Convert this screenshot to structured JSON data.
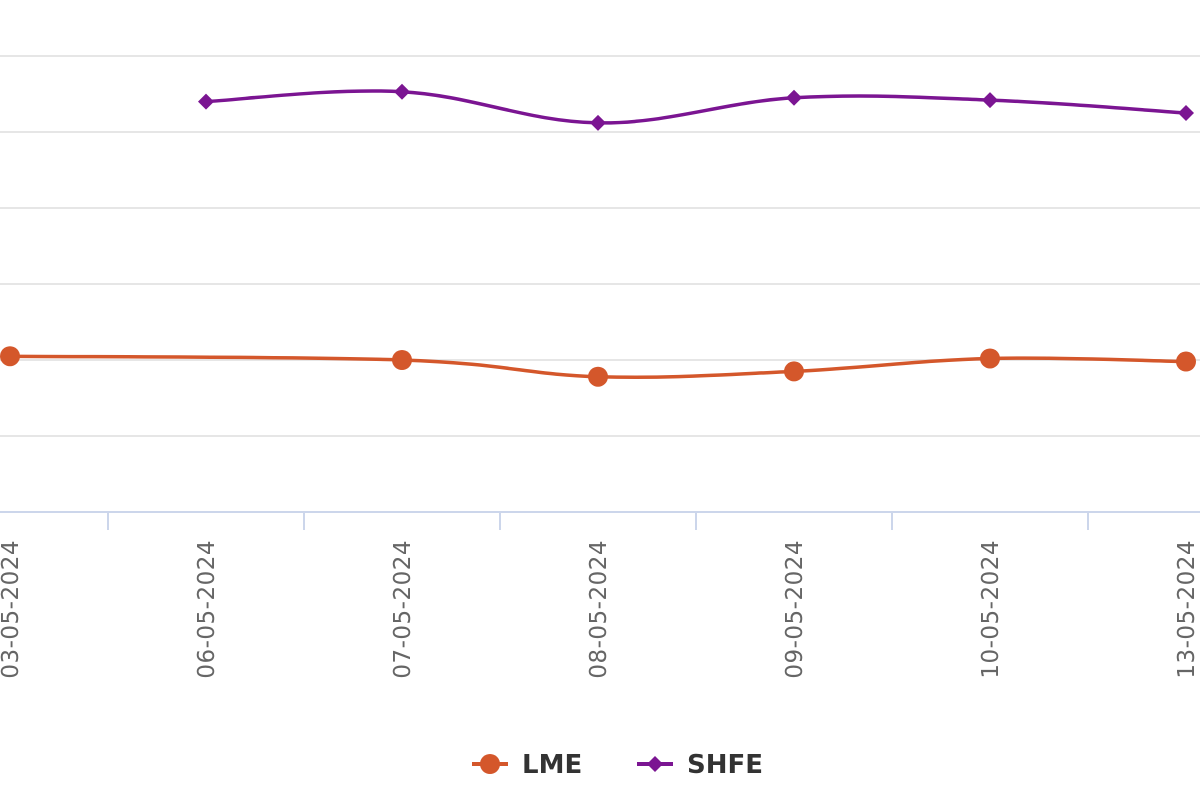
{
  "chart_data": {
    "type": "line",
    "x": [
      "03-05-2024",
      "06-05-2024",
      "07-05-2024",
      "08-05-2024",
      "09-05-2024",
      "10-05-2024",
      "13-05-2024"
    ],
    "series": [
      {
        "name": "LME",
        "color": "#d4572b",
        "marker": "circle",
        "values": [
          2.05,
          null,
          2.0,
          1.78,
          1.85,
          2.02,
          1.98
        ]
      },
      {
        "name": "SHFE",
        "color": "#7b1592",
        "marker": "diamond",
        "values": [
          null,
          5.4,
          5.53,
          5.12,
          5.45,
          5.42,
          5.25
        ]
      }
    ],
    "ylim": [
      0,
      7
    ],
    "y_gridlines": [
      1,
      2,
      3,
      4,
      5,
      6,
      7
    ],
    "grid": true,
    "legend": {
      "placement": "bottom-center"
    },
    "axis_color": "#ccd6eb",
    "grid_color": "#e6e6e6"
  }
}
